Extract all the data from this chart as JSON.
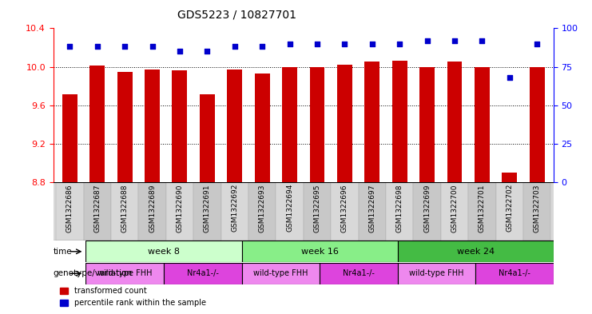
{
  "title": "GDS5223 / 10827701",
  "samples": [
    "GSM1322686",
    "GSM1322687",
    "GSM1322688",
    "GSM1322689",
    "GSM1322690",
    "GSM1322691",
    "GSM1322692",
    "GSM1322693",
    "GSM1322694",
    "GSM1322695",
    "GSM1322696",
    "GSM1322697",
    "GSM1322698",
    "GSM1322699",
    "GSM1322700",
    "GSM1322701",
    "GSM1322702",
    "GSM1322703"
  ],
  "red_values": [
    9.71,
    10.01,
    9.95,
    9.97,
    9.96,
    9.71,
    9.97,
    9.93,
    10.0,
    10.0,
    10.02,
    10.05,
    10.06,
    10.0,
    10.05,
    10.0,
    8.9,
    10.0
  ],
  "blue_values": [
    88,
    88,
    88,
    88,
    85,
    85,
    88,
    88,
    90,
    90,
    90,
    90,
    90,
    92,
    92,
    92,
    68,
    90
  ],
  "ylim_left": [
    8.8,
    10.4
  ],
  "ylim_right": [
    0,
    100
  ],
  "yticks_left": [
    8.8,
    9.2,
    9.6,
    10.0,
    10.4
  ],
  "yticks_right": [
    0,
    25,
    50,
    75,
    100
  ],
  "grid_lines": [
    9.2,
    9.6,
    10.0
  ],
  "time_groups": [
    {
      "label": "week 8",
      "start": 0,
      "end": 6,
      "color": "#ccffcc"
    },
    {
      "label": "week 16",
      "start": 6,
      "end": 12,
      "color": "#88dd88"
    },
    {
      "label": "week 24",
      "start": 12,
      "end": 18,
      "color": "#44bb44"
    }
  ],
  "geno_groups": [
    {
      "label": "wild-type FHH",
      "start": 0,
      "end": 3,
      "color": "#ee88ee"
    },
    {
      "label": "Nr4a1-/-",
      "start": 3,
      "end": 6,
      "color": "#dd44dd"
    },
    {
      "label": "wild-type FHH",
      "start": 6,
      "end": 9,
      "color": "#ee88ee"
    },
    {
      "label": "Nr4a1-/-",
      "start": 9,
      "end": 12,
      "color": "#dd44dd"
    },
    {
      "label": "wild-type FHH",
      "start": 12,
      "end": 15,
      "color": "#ee88ee"
    },
    {
      "label": "Nr4a1-/-",
      "start": 15,
      "end": 18,
      "color": "#dd44dd"
    }
  ],
  "bar_color": "#cc0000",
  "dot_color": "#0000cc",
  "bar_width": 0.55,
  "base_value": 8.8,
  "title_fontsize": 10,
  "tick_fontsize": 8,
  "label_fontsize": 6.5,
  "row_label_fontsize": 7.5,
  "legend_fontsize": 7,
  "time_fontsize": 8,
  "geno_fontsize": 7
}
